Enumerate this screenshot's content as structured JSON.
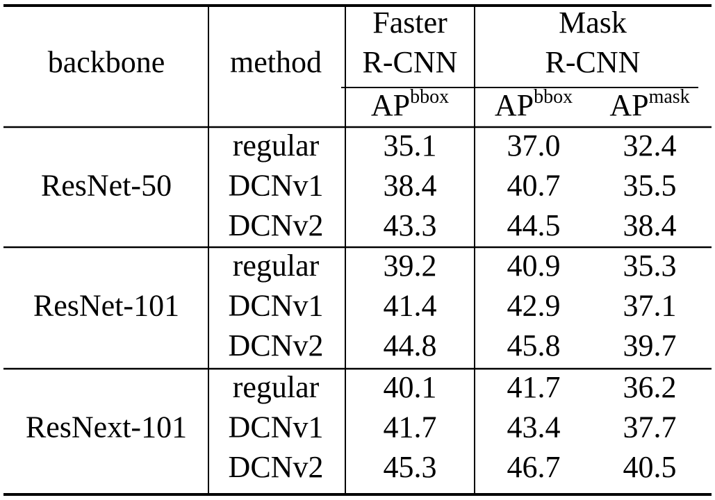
{
  "table": {
    "header": {
      "backbone": "backbone",
      "method": "method",
      "faster": [
        "Faster",
        "R-CNN"
      ],
      "mask": [
        "Mask",
        "R-CNN"
      ]
    },
    "subheader": [
      {
        "base": "AP",
        "sup": "bbox"
      },
      {
        "base": "AP",
        "sup": "bbox"
      },
      {
        "base": "AP",
        "sup": "mask"
      }
    ],
    "groups": [
      {
        "backbone": "ResNet-50",
        "rows": [
          {
            "method": "regular",
            "values": [
              "35.1",
              "37.0",
              "32.4"
            ]
          },
          {
            "method": "DCNv1",
            "values": [
              "38.4",
              "40.7",
              "35.5"
            ]
          },
          {
            "method": "DCNv2",
            "values": [
              "43.3",
              "44.5",
              "38.4"
            ]
          }
        ]
      },
      {
        "backbone": "ResNet-101",
        "rows": [
          {
            "method": "regular",
            "values": [
              "39.2",
              "40.9",
              "35.3"
            ]
          },
          {
            "method": "DCNv1",
            "values": [
              "41.4",
              "42.9",
              "37.1"
            ]
          },
          {
            "method": "DCNv2",
            "values": [
              "44.8",
              "45.8",
              "39.7"
            ]
          }
        ]
      },
      {
        "backbone": "ResNext-101",
        "rows": [
          {
            "method": "regular",
            "values": [
              "40.1",
              "41.7",
              "36.2"
            ]
          },
          {
            "method": "DCNv1",
            "values": [
              "41.7",
              "43.4",
              "37.7"
            ]
          },
          {
            "method": "DCNv2",
            "values": [
              "45.3",
              "46.7",
              "40.5"
            ]
          }
        ]
      }
    ]
  }
}
